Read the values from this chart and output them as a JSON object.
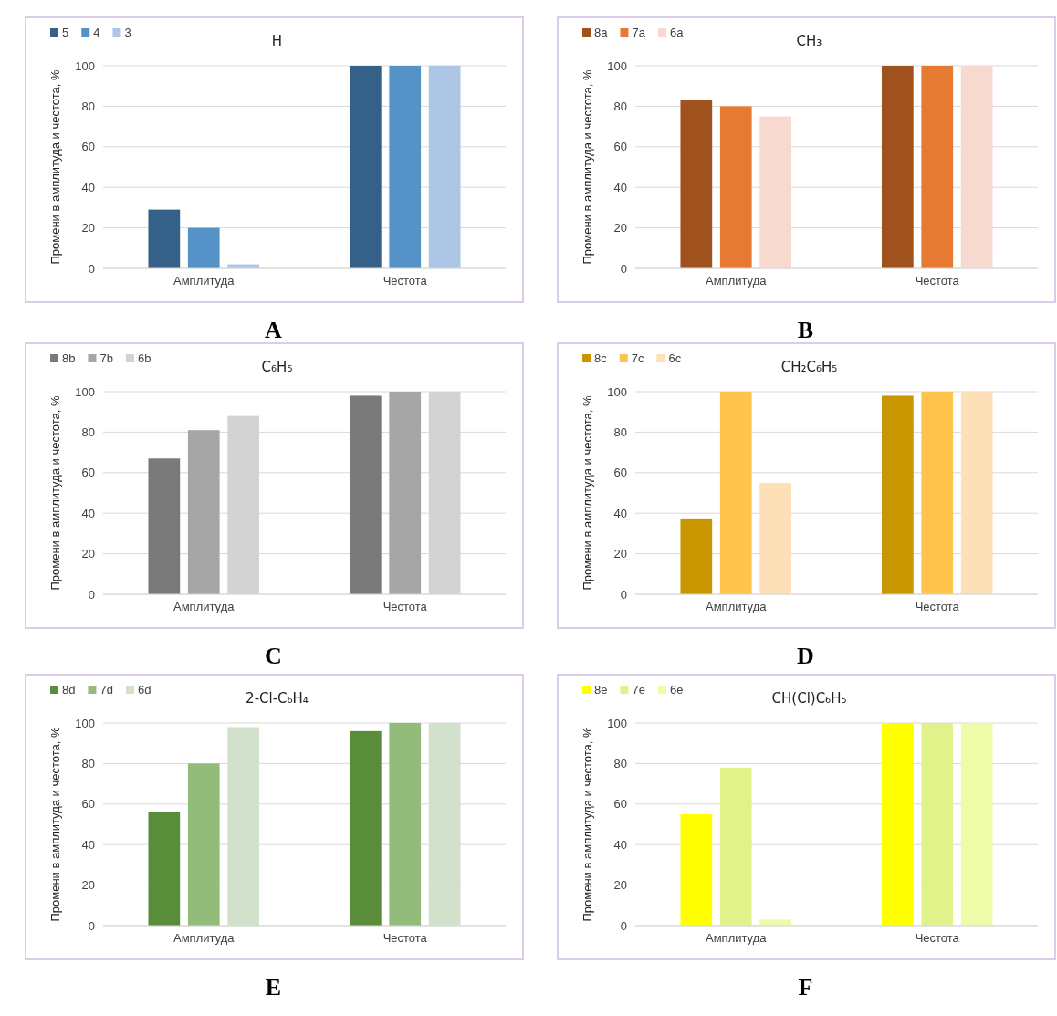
{
  "chart_data": [
    {
      "type": "bar",
      "title": "H",
      "ylabel": "Промени в амплитуда и честота, %",
      "categories": [
        "Амплитуда",
        "Честота"
      ],
      "ylim": [
        0,
        100
      ],
      "yticks": [
        0,
        20,
        40,
        60,
        80,
        100
      ],
      "grid": "y",
      "legend": "top left",
      "annotations": [
        "A"
      ],
      "series": [
        {
          "name": "5",
          "color": "#356087",
          "values": [
            29,
            100
          ]
        },
        {
          "name": "4",
          "color": "#5592c8",
          "values": [
            20,
            100
          ]
        },
        {
          "name": "3",
          "color": "#adc6e5",
          "values": [
            2,
            100
          ]
        }
      ]
    },
    {
      "type": "bar",
      "title": "CH₃",
      "ylabel": "Промени в амплитуда и честота, %",
      "categories": [
        "Амплитуда",
        "Честота"
      ],
      "ylim": [
        0,
        100
      ],
      "yticks": [
        0,
        20,
        40,
        60,
        80,
        100
      ],
      "grid": "y",
      "legend": "top left",
      "annotations": [
        "B"
      ],
      "series": [
        {
          "name": "8a",
          "color": "#a0521e",
          "values": [
            83,
            100
          ]
        },
        {
          "name": "7a",
          "color": "#e77a33",
          "values": [
            80,
            100
          ]
        },
        {
          "name": "6a",
          "color": "#f8d9cf",
          "values": [
            75,
            100
          ]
        }
      ]
    },
    {
      "type": "bar",
      "title": "C₆H₅",
      "ylabel": "Промени в амплитуда и честота, %",
      "categories": [
        "Амплитуда",
        "Честота"
      ],
      "ylim": [
        0,
        100
      ],
      "yticks": [
        0,
        20,
        40,
        60,
        80,
        100
      ],
      "grid": "y",
      "legend": "top left",
      "annotations": [
        "C"
      ],
      "series": [
        {
          "name": "8b",
          "color": "#7a7a7a",
          "values": [
            67,
            98
          ]
        },
        {
          "name": "7b",
          "color": "#a6a6a6",
          "values": [
            81,
            100
          ]
        },
        {
          "name": "6b",
          "color": "#d3d3d3",
          "values": [
            88,
            100
          ]
        }
      ]
    },
    {
      "type": "bar",
      "title": "CH₂C₆H₅",
      "ylabel": "Промени в амплитуда и честота, %",
      "categories": [
        "Амплитуда",
        "Честота"
      ],
      "ylim": [
        0,
        100
      ],
      "yticks": [
        0,
        20,
        40,
        60,
        80,
        100
      ],
      "grid": "y",
      "legend": "top left",
      "annotations": [
        "D"
      ],
      "series": [
        {
          "name": "8c",
          "color": "#c89600",
          "values": [
            37,
            98
          ]
        },
        {
          "name": "7c",
          "color": "#ffc44d",
          "values": [
            100,
            100
          ]
        },
        {
          "name": "6c",
          "color": "#fde0b7",
          "values": [
            55,
            100
          ]
        }
      ]
    },
    {
      "type": "bar",
      "title": "2-Cl-C₆H₄",
      "ylabel": "Промени в амплитуда и честота, %",
      "categories": [
        "Амплитуда",
        "Честота"
      ],
      "ylim": [
        0,
        100
      ],
      "yticks": [
        0,
        20,
        40,
        60,
        80,
        100
      ],
      "grid": "y",
      "legend": "top left",
      "annotations": [
        "E"
      ],
      "series": [
        {
          "name": "8d",
          "color": "#5a8d39",
          "values": [
            56,
            96
          ]
        },
        {
          "name": "7d",
          "color": "#93bc7b",
          "values": [
            80,
            100
          ]
        },
        {
          "name": "6d",
          "color": "#d2e1cb",
          "values": [
            98,
            100
          ]
        }
      ]
    },
    {
      "type": "bar",
      "title": "CH(Cl)C₆H₅",
      "ylabel": "Промени в амплитуда и честота, %",
      "categories": [
        "Амплитуда",
        "Честота"
      ],
      "ylim": [
        0,
        100
      ],
      "yticks": [
        0,
        20,
        40,
        60,
        80,
        100
      ],
      "grid": "y",
      "legend": "top left",
      "annotations": [
        "F"
      ],
      "series": [
        {
          "name": "8e",
          "color": "#ffff00",
          "values": [
            55,
            100
          ]
        },
        {
          "name": "7e",
          "color": "#e2f28b",
          "values": [
            78,
            100
          ]
        },
        {
          "name": "6e",
          "color": "#eefba9",
          "values": [
            3,
            100
          ]
        }
      ]
    }
  ]
}
